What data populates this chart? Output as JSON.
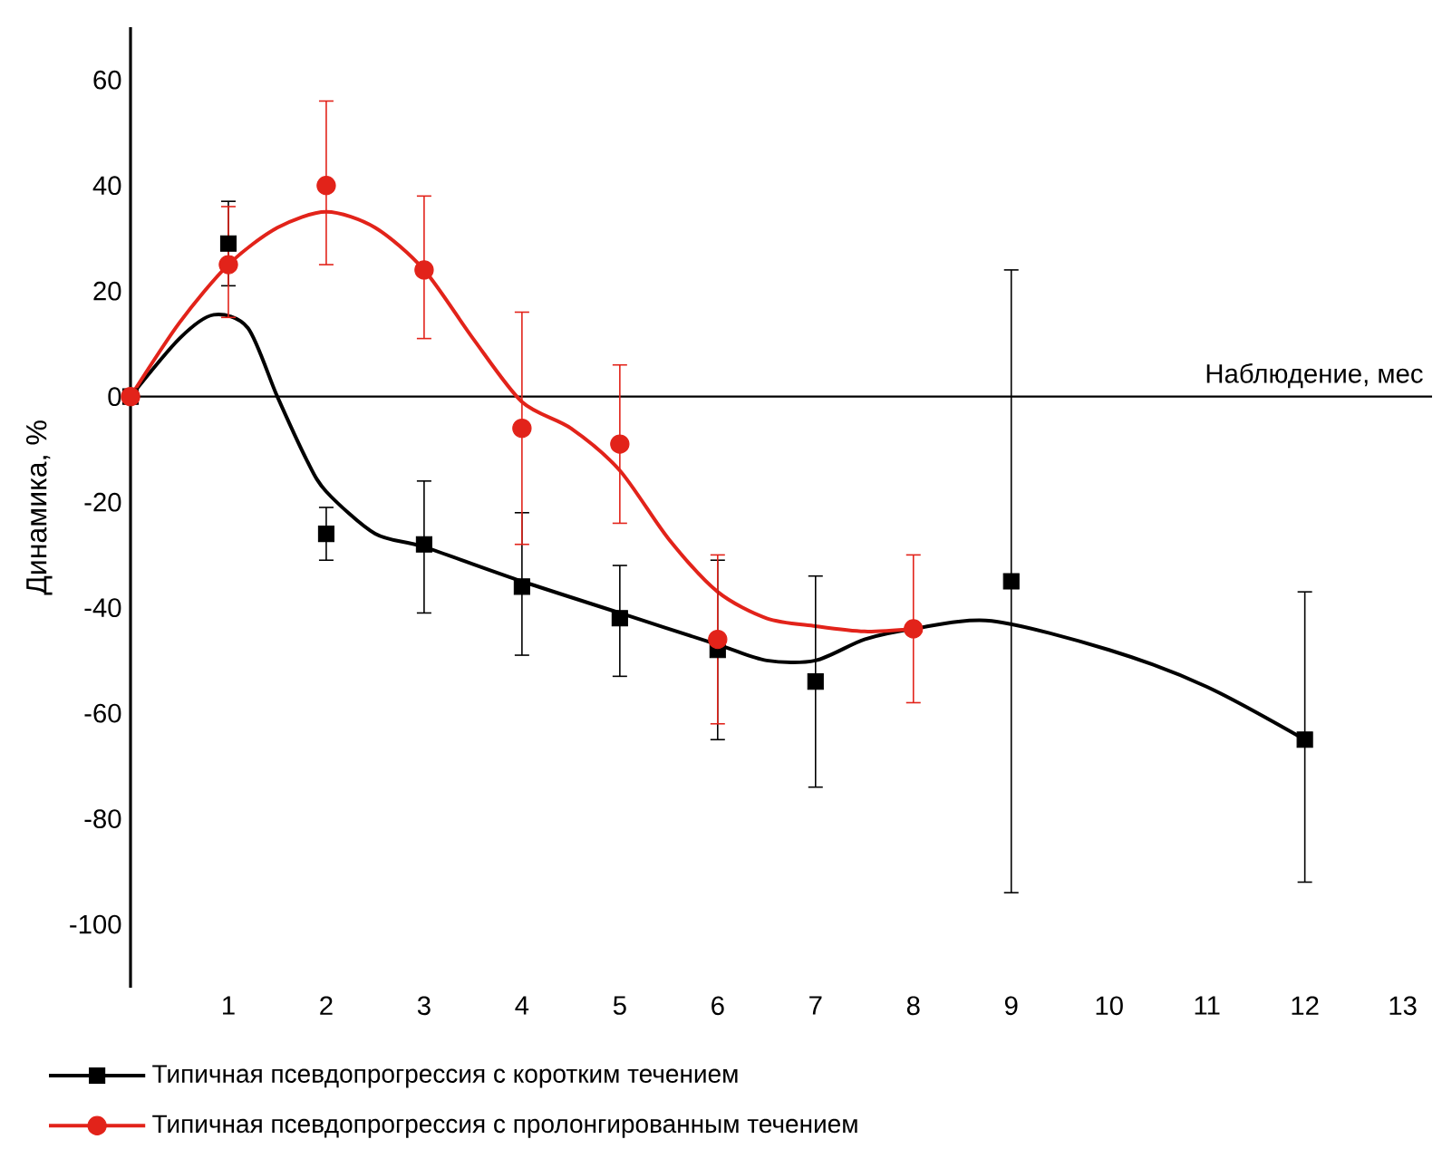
{
  "chart_data": {
    "type": "scatter",
    "xlabel": "Наблюдение, мес",
    "ylabel": "Динамика, %",
    "xlim": [
      0,
      13.3
    ],
    "ylim": [
      -112,
      70
    ],
    "xticks": [
      1,
      2,
      3,
      4,
      5,
      6,
      7,
      8,
      9,
      10,
      11,
      12,
      13
    ],
    "yticks": [
      -100,
      -80,
      -60,
      -40,
      -20,
      0,
      20,
      40,
      60
    ],
    "grid": false,
    "legend": "bottom",
    "ref_lines": [
      {
        "axis": "y",
        "value": 0,
        "color": "#000000"
      }
    ],
    "series": [
      {
        "type": "line",
        "color": "#000000",
        "marker": "none",
        "x": [
          0,
          0.5,
          0.85,
          1.2,
          1.5,
          1.8,
          2,
          2.5,
          3,
          4,
          5,
          6,
          6.5,
          7,
          7.5,
          8,
          8.8,
          10,
          11,
          12
        ],
        "values": [
          0,
          11,
          15.5,
          13,
          0,
          -12,
          -18,
          -26,
          -28.5,
          -35,
          -41,
          -47,
          -50,
          -50,
          -46,
          -44,
          -42.5,
          -48,
          -55,
          -65
        ]
      },
      {
        "type": "line",
        "color": "#e2231a",
        "marker": "none",
        "x": [
          0,
          0.5,
          1,
          1.5,
          2,
          2.5,
          3,
          3.5,
          4,
          4.5,
          5,
          5.5,
          6,
          6.5,
          7,
          7.5,
          8
        ],
        "values": [
          0,
          14,
          25,
          32,
          35,
          32,
          24,
          11,
          -1,
          -6,
          -14,
          -27,
          -37,
          -42,
          -43.5,
          -44.5,
          -44
        ]
      },
      {
        "name": "Типичная псевдопрогрессия с коротким течением",
        "color": "#000000",
        "marker": "square",
        "x": [
          0,
          1,
          2,
          3,
          4,
          5,
          6,
          7,
          9,
          12
        ],
        "values": [
          0,
          29,
          -26,
          -28,
          -36,
          -42,
          -48,
          -54,
          -35,
          -65
        ],
        "errors": [
          null,
          [
            21,
            37
          ],
          [
            -31,
            -21
          ],
          [
            -41,
            -16
          ],
          [
            -49,
            -22
          ],
          [
            -53,
            -32
          ],
          [
            -65,
            -31
          ],
          [
            -74,
            -34
          ],
          [
            -94,
            24
          ],
          [
            -92,
            -37
          ]
        ]
      },
      {
        "name": "Типичная псевдопрогрессия с пролонгированным течением",
        "color": "#e2231a",
        "marker": "circle",
        "x": [
          0,
          1,
          2,
          3,
          4,
          5,
          6,
          8
        ],
        "values": [
          0,
          25,
          40,
          24,
          -6,
          -9,
          -46,
          -44
        ],
        "errors": [
          null,
          [
            15,
            36
          ],
          [
            25,
            56
          ],
          [
            11,
            38
          ],
          [
            -28,
            16
          ],
          [
            -24,
            6
          ],
          [
            -62,
            -30
          ],
          [
            -58,
            -30
          ]
        ]
      }
    ]
  }
}
